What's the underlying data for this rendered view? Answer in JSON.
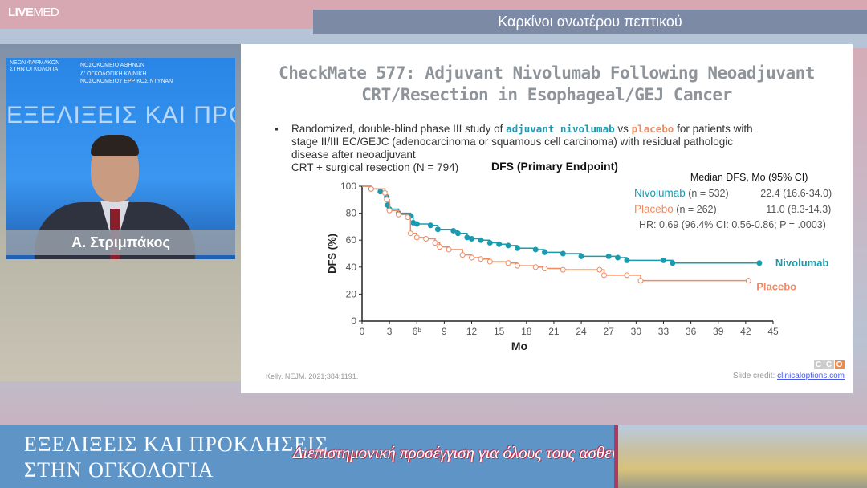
{
  "brand": {
    "logo_bold": "LIVE",
    "logo_light": "MED"
  },
  "header": {
    "title": "Καρκίνοι ανωτέρου πεπτικού"
  },
  "video": {
    "backdrop_line1": "ΝΕΩΝ ΦΑΡΜΑΚΩΝ",
    "backdrop_line2": "ΣΤΗΝ ΟΓΚΟΛΟΓΙΑ",
    "backdrop_line3": "ΝΟΣΟΚΟΜΕΙΟ ΑΘΗΝΩΝ",
    "backdrop_line4": "Δ' ΟΓΚΟΛΟΓΙΚΗ ΚΛΙΝΙΚΗ",
    "backdrop_line5": "ΝΟΣΟΚΟΜΕΙΟΥ ΕΡΡΙΚΟΣ ΝΤΥΝΑΝ",
    "backdrop_big": "ΕΞΕΛΙΞΕΙΣ ΚΑΙ ΠΡΟΚΛΗΣΕΙΣ",
    "speaker_name": "Α. Στριμπάκος"
  },
  "slide": {
    "title_line1": "CheckMate 577: Adjuvant Nivolumab Following Neoadjuvant",
    "title_line2": "CRT/Resection in Esophageal/GEJ Cancer",
    "bullet_pre": "Randomized, double-blind phase III study of ",
    "bullet_nivo": "adjuvant nivolumab",
    "bullet_vs": " vs ",
    "bullet_placebo": "placebo",
    "bullet_post": " for patients with",
    "bullet_line2": "stage II/III EC/GEJC (adenocarcinoma or squamous cell carcinoma) with residual pathologic",
    "bullet_line3": "disease after neoadjuvant",
    "bullet_line4": "CRT + surgical resection (N = 794)",
    "reference": "Kelly. NEJM. 2021;384:1191.",
    "credit_label": "Slide credit: ",
    "credit_link": "clinicaloptions.com",
    "cco_logo": [
      "C",
      "C",
      "O"
    ]
  },
  "chart_data": {
    "type": "line",
    "title": "DFS (Primary Endpoint)",
    "xlabel": "Mo",
    "ylabel": "DFS (%)",
    "xlim": [
      0,
      45
    ],
    "ylim": [
      0,
      100
    ],
    "xticks": [
      "0",
      "3",
      "6ᵇ",
      "9",
      "12",
      "15",
      "18",
      "21",
      "24",
      "27",
      "30",
      "33",
      "36",
      "39",
      "42",
      "45"
    ],
    "yticks": [
      "0",
      "20",
      "40",
      "60",
      "80",
      "100"
    ],
    "legend": {
      "header": "Median DFS, Mo (95% CI)",
      "rows": [
        {
          "name": "Nivolumab",
          "n": "(n = 532)",
          "median": "22.4 (16.6-34.0)"
        },
        {
          "name": "Placebo",
          "n": "(n = 262)",
          "median": "11.0 (8.3-14.3)"
        }
      ],
      "hr": "HR: 0.69 (96.4% CI: 0.56-0.86; P = .0003)"
    },
    "series": [
      {
        "name": "Nivolumab",
        "color": "#1a9bb0",
        "marker": "filled",
        "points": [
          [
            0,
            100
          ],
          [
            1,
            98
          ],
          [
            2,
            96
          ],
          [
            2.7,
            92
          ],
          [
            2.8,
            86
          ],
          [
            3,
            83
          ],
          [
            4,
            80
          ],
          [
            5.3,
            78
          ],
          [
            5.6,
            73
          ],
          [
            6,
            72
          ],
          [
            7.5,
            71
          ],
          [
            8.3,
            68
          ],
          [
            10,
            67
          ],
          [
            10.5,
            65
          ],
          [
            11.5,
            62
          ],
          [
            12,
            61
          ],
          [
            13,
            60
          ],
          [
            14,
            58
          ],
          [
            15,
            57
          ],
          [
            16,
            56
          ],
          [
            17,
            54
          ],
          [
            19,
            53
          ],
          [
            20,
            51
          ],
          [
            22,
            50
          ],
          [
            24,
            48
          ],
          [
            27,
            48
          ],
          [
            28,
            47
          ],
          [
            29,
            45
          ],
          [
            33,
            45
          ],
          [
            34,
            43
          ],
          [
            43.5,
            43
          ]
        ]
      },
      {
        "name": "Placebo",
        "color": "#ef8a62",
        "marker": "open",
        "points": [
          [
            0,
            100
          ],
          [
            1,
            98
          ],
          [
            2.5,
            95
          ],
          [
            2.7,
            90
          ],
          [
            3,
            82
          ],
          [
            4,
            79
          ],
          [
            5,
            77
          ],
          [
            5.3,
            65
          ],
          [
            6,
            62
          ],
          [
            7,
            61
          ],
          [
            8,
            58
          ],
          [
            8.5,
            55
          ],
          [
            9.5,
            53
          ],
          [
            11,
            49
          ],
          [
            12,
            47
          ],
          [
            13,
            46
          ],
          [
            14,
            44
          ],
          [
            16,
            43
          ],
          [
            17,
            41
          ],
          [
            19,
            40
          ],
          [
            20,
            39
          ],
          [
            22,
            38
          ],
          [
            26,
            38
          ],
          [
            26.5,
            34
          ],
          [
            29,
            34
          ],
          [
            30.5,
            30
          ],
          [
            42.3,
            30
          ]
        ]
      }
    ]
  },
  "bottom": {
    "title_line1": "ΕΞΕΛΙΞΕΙΣ ΚΑΙ ΠΡΟΚΛΗΣΕΙΣ",
    "title_line2": "ΣΤΗΝ ΟΓΚΟΛΟΓΙΑ",
    "tagline": "Διεπιστημονική προσέγγιση για όλους τους ασθενείς μας"
  }
}
